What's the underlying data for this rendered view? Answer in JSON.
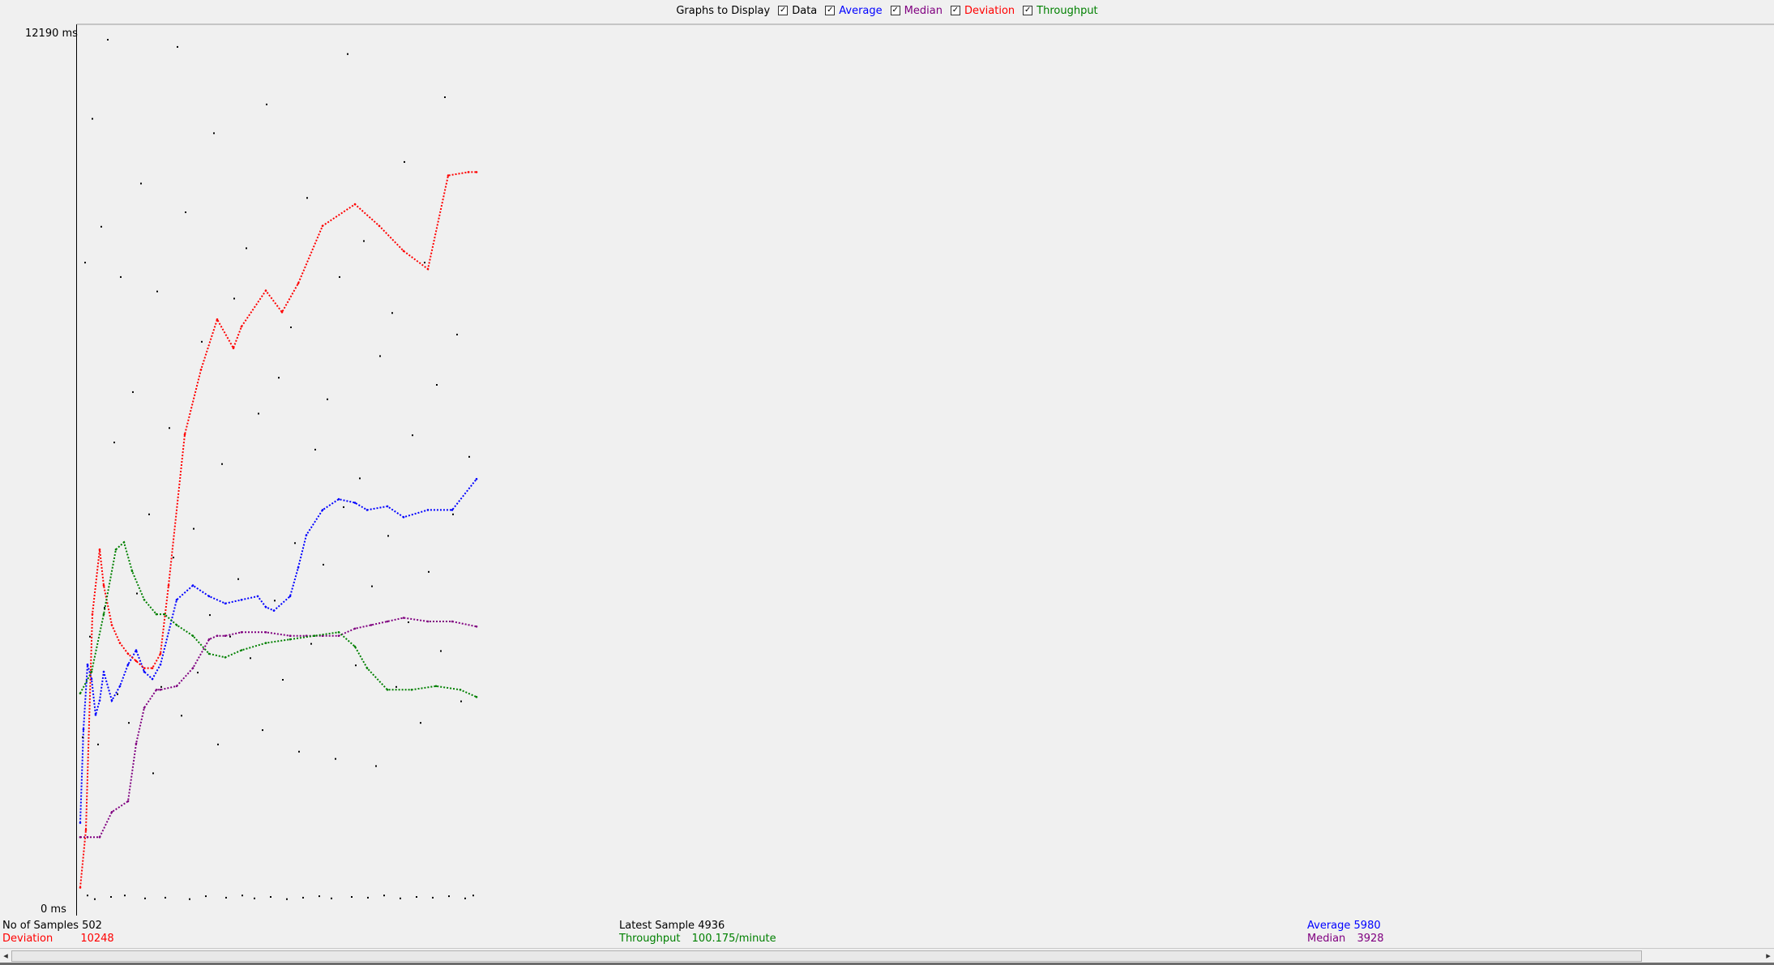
{
  "legend": {
    "title": "Graphs to Display",
    "items": [
      {
        "key": "data",
        "label": "Data",
        "color": "#000000",
        "checked": true
      },
      {
        "key": "average",
        "label": "Average",
        "color": "#0000ff",
        "checked": true
      },
      {
        "key": "median",
        "label": "Median",
        "color": "#800080",
        "checked": true
      },
      {
        "key": "deviation",
        "label": "Deviation",
        "color": "#ff0000",
        "checked": true
      },
      {
        "key": "throughput",
        "label": "Throughput",
        "color": "#008000",
        "checked": true
      }
    ]
  },
  "axis": {
    "top_label": "12190",
    "bottom_label": "0",
    "unit": "ms"
  },
  "stats": {
    "samples_label": "No of Samples",
    "samples_value": "502",
    "deviation_label": "Deviation",
    "deviation_value": "10248",
    "latest_label": "Latest Sample",
    "latest_value": "4936",
    "throughput_label": "Throughput",
    "throughput_value": "100.175/minute",
    "average_label": "Average",
    "average_value": "5980",
    "median_label": "Median",
    "median_value": "3928"
  },
  "chart_data": {
    "type": "scatter",
    "title": "",
    "xlabel": "",
    "ylabel": "",
    "x_range": [
      0,
      502
    ],
    "ylim": [
      0,
      12190
    ],
    "grid": false,
    "series": [
      {
        "name": "Average",
        "color": "#0000ff",
        "x": [
          1,
          5,
          10,
          15,
          20,
          25,
          30,
          40,
          50,
          60,
          70,
          80,
          90,
          100,
          120,
          140,
          160,
          180,
          200,
          220,
          230,
          240,
          260,
          270,
          280,
          300,
          320,
          340,
          355,
          380,
          400,
          430,
          460,
          490
        ],
        "y": [
          1200,
          2500,
          3400,
          3200,
          2700,
          2900,
          3300,
          2900,
          3100,
          3400,
          3600,
          3300,
          3200,
          3400,
          4300,
          4500,
          4350,
          4250,
          4300,
          4350,
          4200,
          4150,
          4350,
          4750,
          5200,
          5550,
          5700,
          5650,
          5550,
          5600,
          5450,
          5550,
          5550,
          5980
        ]
      },
      {
        "name": "Median",
        "color": "#800080",
        "x": [
          1,
          10,
          25,
          40,
          60,
          70,
          80,
          95,
          100,
          120,
          140,
          160,
          170,
          180,
          200,
          230,
          260,
          280,
          300,
          320,
          340,
          360,
          380,
          400,
          430,
          460,
          490
        ],
        "y": [
          1000,
          1000,
          1000,
          1350,
          1500,
          2300,
          2800,
          3050,
          3050,
          3100,
          3350,
          3750,
          3800,
          3800,
          3850,
          3850,
          3800,
          3800,
          3800,
          3800,
          3900,
          3950,
          4000,
          4050,
          4000,
          4000,
          3928
        ]
      },
      {
        "name": "Deviation",
        "color": "#ff0000",
        "x": [
          1,
          8,
          16,
          25,
          30,
          40,
          50,
          60,
          70,
          80,
          90,
          100,
          110,
          130,
          150,
          170,
          190,
          200,
          230,
          250,
          270,
          300,
          340,
          370,
          400,
          430,
          455,
          480,
          490
        ],
        "y": [
          300,
          1100,
          4100,
          5000,
          4500,
          3950,
          3700,
          3550,
          3450,
          3350,
          3350,
          3550,
          4500,
          6600,
          7500,
          8200,
          7800,
          8100,
          8600,
          8300,
          8700,
          9500,
          9800,
          9500,
          9150,
          8900,
          10200,
          10248,
          10248
        ]
      },
      {
        "name": "Throughput",
        "color": "#008000",
        "x": [
          1,
          15,
          30,
          45,
          55,
          65,
          80,
          95,
          105,
          120,
          140,
          160,
          180,
          200,
          230,
          260,
          290,
          320,
          340,
          355,
          380,
          410,
          440,
          470,
          490
        ],
        "y": [
          3000,
          3300,
          4100,
          5000,
          5100,
          4700,
          4300,
          4100,
          4100,
          3950,
          3800,
          3550,
          3500,
          3600,
          3700,
          3750,
          3800,
          3850,
          3650,
          3350,
          3050,
          3050,
          3100,
          3050,
          2950
        ]
      },
      {
        "name": "Data",
        "color": "#000000",
        "x": [
          3,
          6,
          9,
          12,
          15,
          18,
          22,
          26,
          30,
          34,
          38,
          42,
          46,
          50,
          55,
          60,
          65,
          70,
          75,
          80,
          85,
          90,
          95,
          100,
          105,
          110,
          115,
          120,
          125,
          130,
          135,
          140,
          145,
          150,
          155,
          160,
          165,
          170,
          175,
          180,
          185,
          190,
          195,
          200,
          205,
          210,
          215,
          220,
          225,
          230,
          235,
          240,
          245,
          250,
          255,
          260,
          265,
          270,
          275,
          280,
          285,
          290,
          295,
          300,
          305,
          310,
          315,
          320,
          325,
          330,
          335,
          340,
          345,
          350,
          355,
          360,
          365,
          370,
          375,
          380,
          385,
          390,
          395,
          400,
          405,
          410,
          415,
          420,
          425,
          430,
          435,
          440,
          445,
          450,
          455,
          460,
          465,
          470,
          475,
          480,
          485
        ],
        "y": [
          2400,
          9000,
          200,
          3800,
          11000,
          150,
          2300,
          9500,
          4200,
          12100,
          180,
          6500,
          3000,
          8800,
          200,
          2600,
          7200,
          4400,
          10100,
          160,
          5500,
          1900,
          8600,
          3100,
          170,
          6700,
          4900,
          12000,
          2700,
          9700,
          150,
          5300,
          3300,
          7900,
          190,
          4100,
          10800,
          2300,
          6200,
          170,
          3800,
          8500,
          4600,
          200,
          9200,
          3500,
          160,
          6900,
          2500,
          11200,
          180,
          4300,
          7400,
          3200,
          150,
          8100,
          5100,
          2200,
          170,
          9900,
          3700,
          6400,
          190,
          4800,
          7100,
          160,
          2100,
          8800,
          5600,
          11900,
          180,
          3400,
          6000,
          9300,
          170,
          4500,
          2000,
          7700,
          200,
          5200,
          8300,
          3100,
          160,
          10400,
          4000,
          6600,
          180,
          2600,
          9000,
          4700,
          170,
          7300,
          3600,
          11300,
          190,
          5500,
          8000,
          2900,
          160,
          6300,
          200
        ]
      }
    ]
  }
}
